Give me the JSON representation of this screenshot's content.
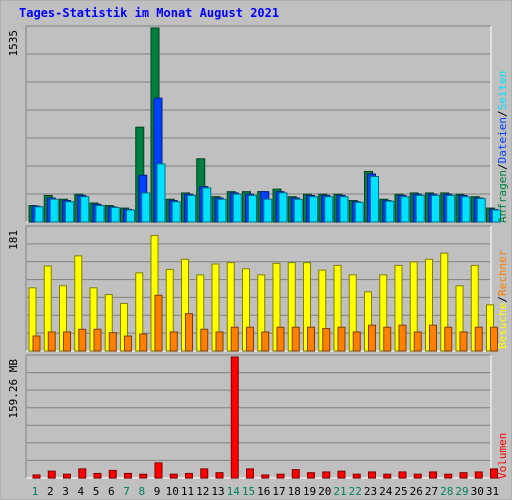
{
  "title": "Tages-Statistik im Monat August 2021",
  "chart_data": {
    "type": "bar",
    "categories": [
      "1",
      "2",
      "3",
      "4",
      "5",
      "6",
      "7",
      "8",
      "9",
      "10",
      "11",
      "12",
      "13",
      "14",
      "15",
      "16",
      "17",
      "18",
      "19",
      "20",
      "21",
      "22",
      "23",
      "24",
      "25",
      "26",
      "27",
      "28",
      "29",
      "30",
      "31"
    ],
    "weekend_days": [
      "1",
      "7",
      "8",
      "14",
      "15",
      "21",
      "22",
      "28",
      "29"
    ],
    "panels": [
      {
        "name": "hits",
        "scale_label": "1535",
        "ymax": 1535,
        "legend": [
          "Anfragen",
          "/",
          "Dateien",
          "/",
          "Seiten"
        ],
        "series": [
          {
            "name": "Anfragen",
            "color": "#008040",
            "values": [
              130,
              210,
              180,
              220,
              150,
              130,
              110,
              750,
              1535,
              180,
              230,
              500,
              200,
              240,
              240,
              240,
              260,
              200,
              220,
              220,
              220,
              170,
              400,
              180,
              220,
              230,
              230,
              230,
              220,
              200,
              110
            ]
          },
          {
            "name": "Dateien",
            "color": "#0040ff",
            "values": [
              125,
              190,
              170,
              210,
              140,
              120,
              100,
              370,
              980,
              170,
              220,
              280,
              190,
              230,
              220,
              240,
              240,
              190,
              210,
              210,
              210,
              160,
              380,
              170,
              210,
              220,
              220,
              220,
              210,
              190,
              100
            ]
          },
          {
            "name": "Seiten",
            "color": "#00e0ff",
            "values": [
              120,
              180,
              160,
              200,
              130,
              115,
              95,
              230,
              460,
              160,
              210,
              270,
              180,
              220,
              210,
              180,
              230,
              180,
              200,
              200,
              200,
              155,
              360,
              165,
              200,
              210,
              210,
              210,
              200,
              185,
              95
            ]
          }
        ]
      },
      {
        "name": "visits",
        "scale_label": "181",
        "ymax": 181,
        "legend": [
          "Besuche",
          "/",
          "Rechner"
        ],
        "series": [
          {
            "name": "Besuche",
            "color": "#ffff00",
            "values": [
              93,
              125,
              96,
              140,
              93,
              83,
              70,
              115,
              170,
              120,
              135,
              112,
              128,
              130,
              121,
              112,
              129,
              130,
              130,
              119,
              126,
              112,
              87,
              112,
              126,
              131,
              135,
              144,
              96,
              126,
              68
            ]
          },
          {
            "name": "Rechner",
            "color": "#ff8000",
            "values": [
              22,
              28,
              28,
              32,
              32,
              27,
              22,
              25,
              82,
              28,
              55,
              32,
              28,
              35,
              35,
              28,
              35,
              35,
              35,
              33,
              35,
              28,
              38,
              35,
              38,
              28,
              38,
              35,
              28,
              35,
              35
            ]
          }
        ]
      },
      {
        "name": "volume",
        "scale_label": "159.26 MB",
        "ymax": 159.26,
        "legend": [
          "Volumen"
        ],
        "series": [
          {
            "name": "Volumen",
            "color": "#ff0000",
            "values": [
              4,
              9,
              5,
              12,
              6,
              10,
              6,
              5,
              20,
              5,
              6,
              12,
              7,
              159.26,
              12,
              4,
              5,
              11,
              7,
              8,
              9,
              5,
              8,
              5,
              8,
              5,
              8,
              5,
              7,
              8,
              12
            ]
          }
        ]
      }
    ]
  }
}
